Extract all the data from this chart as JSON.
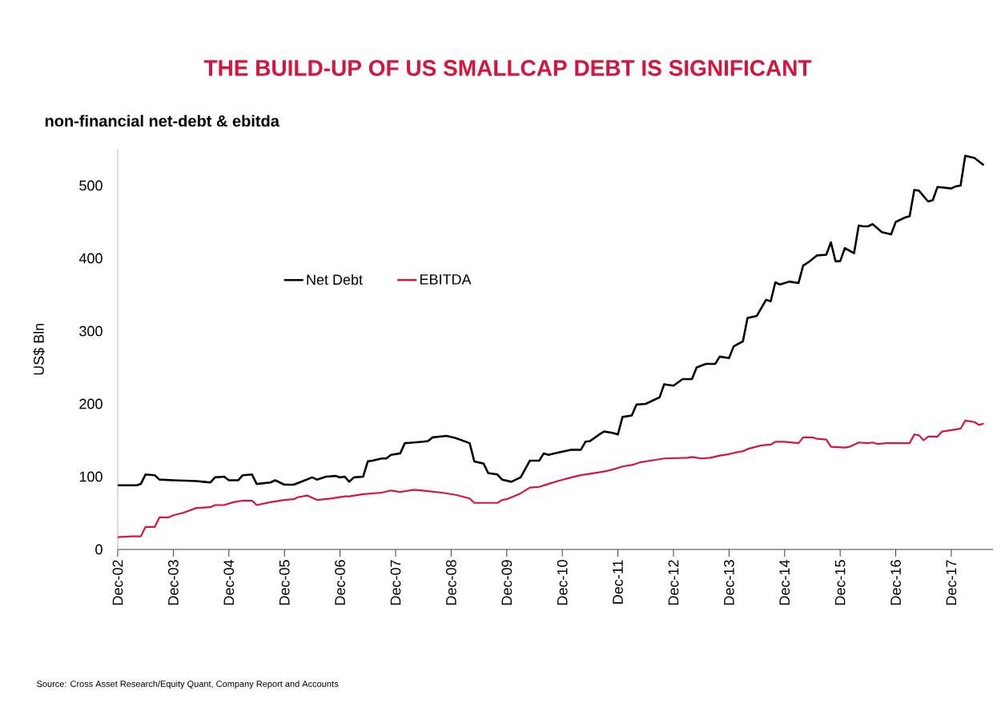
{
  "chart_data": {
    "type": "line",
    "title": "THE BUILD-UP OF US SMALLCAP DEBT IS SIGNIFICANT",
    "subtitle": "non-financial net-debt & ebitda",
    "ylabel": "US$ Bln",
    "annotations": [
      "Source: Cross Asset Research/Equity Quant, Company Report and Accounts"
    ],
    "xlim": [
      "2002-12",
      "2018-09"
    ],
    "ylim": [
      0,
      550
    ],
    "xticks": [
      {
        "value": "2002-12",
        "label": "Dec-02"
      },
      {
        "value": "2003-12",
        "label": "Dec-03"
      },
      {
        "value": "2004-12",
        "label": "Dec-04"
      },
      {
        "value": "2005-12",
        "label": "Dec-05"
      },
      {
        "value": "2006-12",
        "label": "Dec-06"
      },
      {
        "value": "2007-12",
        "label": "Dec-07"
      },
      {
        "value": "2008-12",
        "label": "Dec-08"
      },
      {
        "value": "2009-12",
        "label": "Dec-09"
      },
      {
        "value": "2010-12",
        "label": "Dec-10"
      },
      {
        "value": "2011-12",
        "label": "Dec-11"
      },
      {
        "value": "2012-12",
        "label": "Dec-12"
      },
      {
        "value": "2013-12",
        "label": "Dec-13"
      },
      {
        "value": "2014-12",
        "label": "Dec-14"
      },
      {
        "value": "2015-12",
        "label": "Dec-15"
      },
      {
        "value": "2016-12",
        "label": "Dec-16"
      },
      {
        "value": "2017-12",
        "label": "Dec-17"
      }
    ],
    "yticks": [
      0,
      100,
      200,
      300,
      400,
      500
    ],
    "grid": false,
    "legend": "top left",
    "series": [
      {
        "name": "Net Debt",
        "color": "#000000",
        "x": [
          "2002-12",
          "2003-04",
          "2003-05",
          "2003-06",
          "2003-08",
          "2003-09",
          "2003-12",
          "2004-05",
          "2004-08",
          "2004-09",
          "2004-11",
          "2004-12",
          "2005-02",
          "2005-03",
          "2005-05",
          "2005-06",
          "2005-09",
          "2005-10",
          "2005-12",
          "2006-02",
          "2006-04",
          "2006-06",
          "2006-07",
          "2006-09",
          "2006-11",
          "2006-12",
          "2007-01",
          "2007-02",
          "2007-03",
          "2007-05",
          "2007-06",
          "2007-07",
          "2007-09",
          "2007-10",
          "2007-11",
          "2008-01",
          "2008-02",
          "2008-04",
          "2008-06",
          "2008-07",
          "2008-08",
          "2008-11",
          "2009-01",
          "2009-04",
          "2009-05",
          "2009-07",
          "2009-08",
          "2009-10",
          "2009-11",
          "2010-01",
          "2010-03",
          "2010-05",
          "2010-07",
          "2010-08",
          "2010-09",
          "2010-11",
          "2011-02",
          "2011-04",
          "2011-05",
          "2011-06",
          "2011-08",
          "2011-09",
          "2011-11",
          "2011-12",
          "2012-01",
          "2012-03",
          "2012-04",
          "2012-06",
          "2012-08",
          "2012-09",
          "2012-10",
          "2012-12",
          "2013-02",
          "2013-04",
          "2013-05",
          "2013-07",
          "2013-09",
          "2013-10",
          "2013-12",
          "2014-01",
          "2014-03",
          "2014-04",
          "2014-06",
          "2014-08",
          "2014-09",
          "2014-10",
          "2014-11",
          "2015-01",
          "2015-03",
          "2015-04",
          "2015-05",
          "2015-07",
          "2015-09",
          "2015-10",
          "2015-11",
          "2015-12",
          "2016-01",
          "2016-03",
          "2016-04",
          "2016-05",
          "2016-06",
          "2016-07",
          "2016-09",
          "2016-11",
          "2016-12",
          "2017-02",
          "2017-03",
          "2017-04",
          "2017-05",
          "2017-07",
          "2017-08",
          "2017-09",
          "2017-12",
          "2018-01",
          "2018-02",
          "2018-03",
          "2018-05",
          "2018-07"
        ],
        "values": [
          88,
          88,
          90,
          103,
          102,
          96,
          95,
          94,
          92,
          99,
          100,
          95,
          95,
          102,
          103,
          90,
          92,
          95,
          89,
          89,
          94,
          99,
          96,
          100,
          101,
          99,
          100,
          93,
          99,
          100,
          121,
          122,
          125,
          125,
          130,
          132,
          146,
          147,
          148,
          149,
          154,
          156,
          153,
          146,
          121,
          118,
          105,
          103,
          96,
          93,
          99,
          122,
          122,
          132,
          130,
          133,
          137,
          137,
          148,
          149,
          158,
          162,
          160,
          158,
          182,
          184,
          199,
          200,
          206,
          209,
          227,
          225,
          234,
          234,
          250,
          255,
          255,
          265,
          263,
          279,
          286,
          318,
          321,
          343,
          341,
          367,
          364,
          368,
          366,
          390,
          394,
          404,
          405,
          422,
          396,
          396,
          414,
          407,
          445,
          444,
          444,
          447,
          436,
          433,
          450,
          456,
          458,
          494,
          493,
          478,
          480,
          498,
          496,
          499,
          500,
          541,
          538,
          528
        ]
      },
      {
        "name": "EBITDA",
        "color": "#d7143c",
        "x": [
          "2002-12",
          "2003-03",
          "2003-05",
          "2003-06",
          "2003-08",
          "2003-09",
          "2003-11",
          "2003-12",
          "2004-02",
          "2004-05",
          "2004-08",
          "2004-09",
          "2004-11",
          "2005-01",
          "2005-03",
          "2005-05",
          "2005-06",
          "2005-09",
          "2005-12",
          "2006-02",
          "2006-03",
          "2006-05",
          "2006-07",
          "2006-10",
          "2007-01",
          "2007-02",
          "2007-05",
          "2007-09",
          "2007-11",
          "2008-01",
          "2008-04",
          "2008-07",
          "2008-10",
          "2009-01",
          "2009-04",
          "2009-05",
          "2009-10",
          "2009-11",
          "2009-12",
          "2010-03",
          "2010-05",
          "2010-07",
          "2010-09",
          "2010-11",
          "2011-02",
          "2011-04",
          "2011-06",
          "2011-09",
          "2011-11",
          "2012-01",
          "2012-03",
          "2012-05",
          "2012-07",
          "2012-10",
          "2013-03",
          "2013-04",
          "2013-06",
          "2013-08",
          "2013-10",
          "2013-12",
          "2014-02",
          "2014-03",
          "2014-04",
          "2014-07",
          "2014-09",
          "2014-10",
          "2014-12",
          "2015-03",
          "2015-04",
          "2015-06",
          "2015-07",
          "2015-09",
          "2015-10",
          "2016-01",
          "2016-02",
          "2016-04",
          "2016-06",
          "2016-07",
          "2016-08",
          "2016-10",
          "2017-03",
          "2017-04",
          "2017-05",
          "2017-06",
          "2017-07",
          "2017-09",
          "2017-10",
          "2018-01",
          "2018-02",
          "2018-03",
          "2018-05",
          "2018-06",
          "2018-07"
        ],
        "values": [
          17,
          18,
          18,
          31,
          31,
          44,
          44,
          47,
          50,
          57,
          58,
          61,
          61,
          65,
          67,
          67,
          61,
          65,
          68,
          69,
          72,
          74,
          68,
          70,
          73,
          73,
          76,
          78,
          81,
          79,
          82,
          80,
          78,
          75,
          70,
          64,
          64,
          68,
          69,
          77,
          85,
          86,
          90,
          94,
          99,
          102,
          104,
          107,
          110,
          114,
          116,
          120,
          122,
          125,
          126,
          127,
          125,
          126,
          129,
          131,
          134,
          135,
          138,
          143,
          144,
          148,
          148,
          146,
          154,
          154,
          152,
          151,
          141,
          140,
          141,
          147,
          146,
          147,
          145,
          146,
          146,
          158,
          157,
          150,
          155,
          155,
          162,
          165,
          166,
          177,
          175,
          171,
          173
        ]
      }
    ]
  }
}
